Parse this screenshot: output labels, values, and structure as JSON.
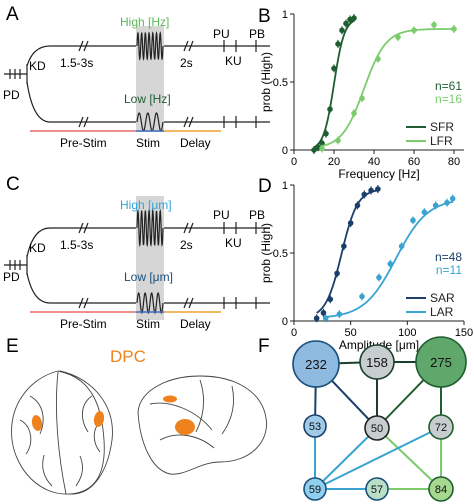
{
  "panels": {
    "A": {
      "letter": "A",
      "stim_high": "High [Hz]",
      "stim_low": "Low [Hz]",
      "pd": "PD",
      "kd": "KD",
      "pre_interval": "1.5-3s",
      "delay_interval": "2s",
      "pu": "PU",
      "ku": "KU",
      "pb": "PB",
      "phase_pre": "Pre-Stim",
      "phase_stim": "Stim",
      "phase_delay": "Delay",
      "colors": {
        "high": "#5cb85c",
        "low": "#1e5e30"
      }
    },
    "B": {
      "letter": "B",
      "chart_data": {
        "type": "scatter",
        "xlabel": "Frequency [Hz]",
        "ylabel": "prob (High)",
        "xlim": [
          0,
          85
        ],
        "ylim": [
          0,
          1
        ],
        "xticks": [
          0,
          20,
          40,
          60,
          80
        ],
        "yticks": [
          "0",
          "0.5",
          "1"
        ],
        "legend_placement": "bottom-right",
        "series": [
          {
            "name": "SFR",
            "n_label": "n=61",
            "color": "#1e5e30",
            "x": [
              10,
              12,
              14,
              16,
              18,
              20,
              22,
              24,
              26,
              28,
              30
            ],
            "y": [
              0.0,
              0.02,
              0.05,
              0.12,
              0.3,
              0.6,
              0.78,
              0.88,
              0.93,
              0.96,
              0.97
            ],
            "fit_mid": 20,
            "fit_slope": 2.6
          },
          {
            "name": "LFR",
            "n_label": "n=16",
            "color": "#7ccc6e",
            "x": [
              14,
              22,
              30,
              34,
              42,
              52,
              60,
              70,
              80
            ],
            "y": [
              0.01,
              0.07,
              0.27,
              0.38,
              0.67,
              0.83,
              0.88,
              0.92,
              0.89
            ],
            "fit_mid": 35,
            "fit_slope": 5.5
          }
        ]
      }
    },
    "C": {
      "letter": "C",
      "stim_high": "High [μm]",
      "stim_low": "Low [μm]",
      "pd": "PD",
      "kd": "KD",
      "pre_interval": "1.5-3s",
      "delay_interval": "2s",
      "pu": "PU",
      "ku": "KU",
      "pb": "PB",
      "phase_pre": "Pre-Stim",
      "phase_stim": "Stim",
      "phase_delay": "Delay",
      "colors": {
        "high": "#2fa5d6",
        "low": "#1a4f7a"
      }
    },
    "D": {
      "letter": "D",
      "chart_data": {
        "type": "scatter",
        "xlabel": "Amplitude [μm]",
        "ylabel": "prob (High)",
        "xlim": [
          0,
          150
        ],
        "ylim": [
          0,
          1
        ],
        "xticks": [
          0,
          50,
          100,
          150
        ],
        "yticks": [
          "0",
          "0.5",
          "1"
        ],
        "legend_placement": "bottom-right",
        "series": [
          {
            "name": "SAR",
            "n_label": "n=48",
            "color": "#1a3f6b",
            "x": [
              20,
              26,
              32,
              38,
              44,
              50,
              56,
              62,
              68,
              74
            ],
            "y": [
              0.02,
              0.06,
              0.16,
              0.35,
              0.55,
              0.72,
              0.85,
              0.93,
              0.96,
              0.97
            ],
            "fit_mid": 42,
            "fit_slope": 7
          },
          {
            "name": "LAR",
            "n_label": "n=11",
            "color": "#3aa3d1",
            "x": [
              28,
              40,
              60,
              75,
              85,
              95,
              105,
              115,
              125,
              135,
              140
            ],
            "y": [
              0.02,
              0.05,
              0.18,
              0.32,
              0.42,
              0.55,
              0.74,
              0.8,
              0.85,
              0.87,
              0.9
            ],
            "fit_mid": 90,
            "fit_slope": 14
          }
        ]
      }
    },
    "E": {
      "letter": "E",
      "region_label": "DPC",
      "region_color": "#f0821e"
    },
    "F": {
      "letter": "F",
      "nodes": [
        {
          "id": "232",
          "label": "232",
          "fill": "#8fbadf",
          "stroke": "#1a4f7a"
        },
        {
          "id": "158",
          "label": "158",
          "fill": "#c8cdd0",
          "stroke": "#1a3f2c"
        },
        {
          "id": "275",
          "label": "275",
          "fill": "#5fa76a",
          "stroke": "#1e5e30"
        },
        {
          "id": "53",
          "label": "53",
          "fill": "#9fcbe8",
          "stroke": "#1a3f6b"
        },
        {
          "id": "50",
          "label": "50",
          "fill": "#c8cdd0",
          "stroke": "#222222"
        },
        {
          "id": "72",
          "label": "72",
          "fill": "#c8cdd0",
          "stroke": "#1e5e30"
        },
        {
          "id": "59",
          "label": "59",
          "fill": "#8fd0ef",
          "stroke": "#1a4f7a"
        },
        {
          "id": "57",
          "label": "57",
          "fill": "#b9e0c6",
          "stroke": "#1a4f7a"
        },
        {
          "id": "84",
          "label": "84",
          "fill": "#a7d88f",
          "stroke": "#1e5e30"
        }
      ],
      "edges": [
        {
          "from": "232",
          "to": "158",
          "color": "#1a3f2c"
        },
        {
          "from": "158",
          "to": "275",
          "color": "#1a3f2c"
        },
        {
          "from": "232",
          "to": "53",
          "color": "#1a3f6b"
        },
        {
          "from": "232",
          "to": "50",
          "color": "#1a3f6b"
        },
        {
          "from": "158",
          "to": "50",
          "color": "#1a3f2c"
        },
        {
          "from": "275",
          "to": "50",
          "color": "#1e5e30"
        },
        {
          "from": "275",
          "to": "72",
          "color": "#1e5e30"
        },
        {
          "from": "53",
          "to": "59",
          "color": "#3aa3d1"
        },
        {
          "from": "50",
          "to": "59",
          "color": "#3aa3d1"
        },
        {
          "from": "50",
          "to": "84",
          "color": "#7ccc6e"
        },
        {
          "from": "72",
          "to": "59",
          "color": "#3aa3d1"
        },
        {
          "from": "72",
          "to": "84",
          "color": "#7ccc6e"
        },
        {
          "from": "59",
          "to": "57",
          "color": "#3aa3d1"
        },
        {
          "from": "57",
          "to": "84",
          "color": "#7ccc6e"
        }
      ]
    }
  }
}
